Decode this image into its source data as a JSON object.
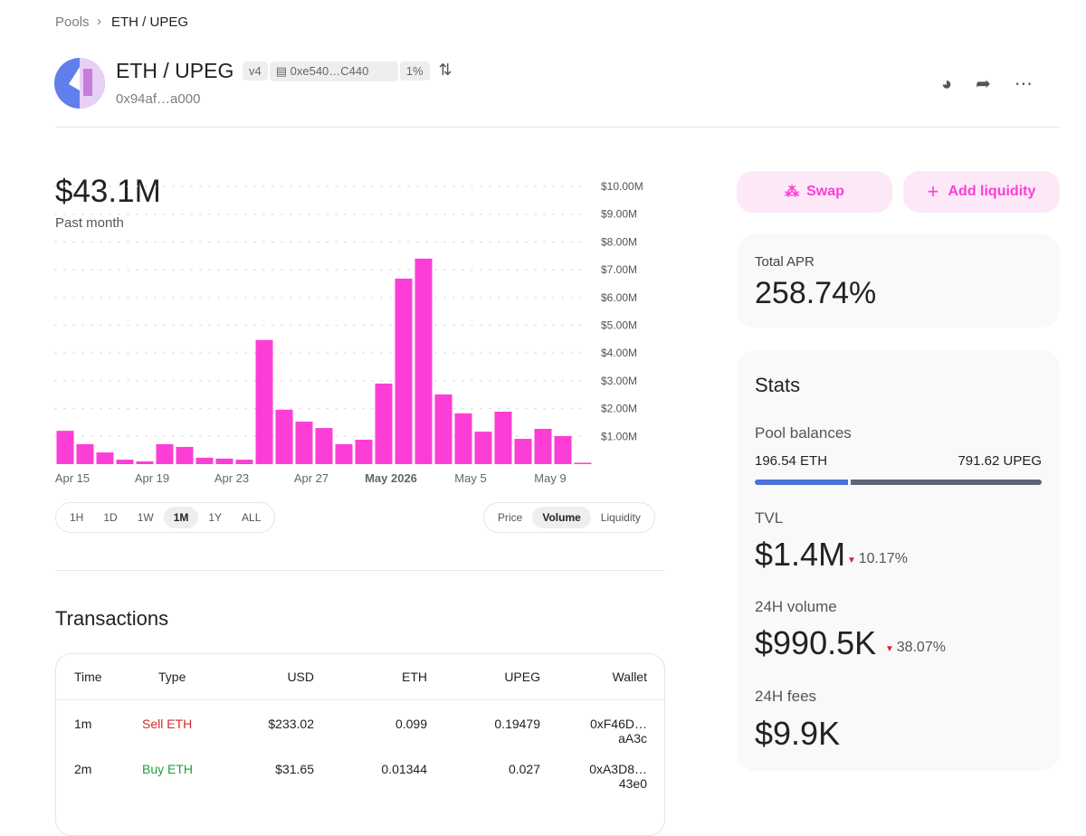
{
  "breadcrumb": {
    "root": "Pools",
    "current": "ETH / UPEG"
  },
  "header": {
    "pair": "ETH / UPEG",
    "version": "v4",
    "address": "0xe540…C440",
    "fee": "1%",
    "pool_id": "0x94af…a000"
  },
  "summary": {
    "value": "$43.1M",
    "period": "Past month"
  },
  "chart_data": {
    "type": "bar",
    "color": "#fc3ed6",
    "grid": true,
    "categories": [
      "Apr 15",
      null,
      null,
      null,
      "Apr 19",
      null,
      null,
      null,
      "Apr 23",
      null,
      null,
      null,
      "Apr 27",
      null,
      null,
      null,
      "May 2026",
      null,
      null,
      null,
      "May 5",
      null,
      null,
      null,
      "May 9",
      null,
      null
    ],
    "values": [
      1200000,
      720000,
      420000,
      160000,
      100000,
      720000,
      620000,
      230000,
      200000,
      160000,
      4470000,
      1960000,
      1530000,
      1300000,
      720000,
      880000,
      2900000,
      6680000,
      7400000,
      2510000,
      1830000,
      1170000,
      1890000,
      910000,
      1270000,
      1010000,
      50000
    ],
    "ylim": [
      0,
      10000000
    ],
    "yticks": [
      {
        "value": 1000000,
        "label": "$1.00M"
      },
      {
        "value": 2000000,
        "label": "$2.00M"
      },
      {
        "value": 3000000,
        "label": "$3.00M"
      },
      {
        "value": 4000000,
        "label": "$4.00M"
      },
      {
        "value": 5000000,
        "label": "$5.00M"
      },
      {
        "value": 6000000,
        "label": "$6.00M"
      },
      {
        "value": 7000000,
        "label": "$7.00M"
      },
      {
        "value": 8000000,
        "label": "$8.00M"
      },
      {
        "value": 9000000,
        "label": "$9.00M"
      },
      {
        "value": 10000000,
        "label": "$10.00M"
      }
    ]
  },
  "time_ranges": [
    "1H",
    "1D",
    "1W",
    "1M",
    "1Y",
    "ALL"
  ],
  "selected_range": "1M",
  "chart_modes": [
    "Price",
    "Volume",
    "Liquidity"
  ],
  "selected_mode": "Volume",
  "transactions": {
    "title": "Transactions",
    "columns": [
      "Time",
      "Type",
      "USD",
      "ETH",
      "UPEG",
      "Wallet"
    ],
    "rows": [
      [
        "1m",
        "Sell ETH",
        "$233.02",
        "0.099",
        "0.19479",
        "0xF46D…aA3c"
      ],
      [
        "2m",
        "Buy ETH",
        "$31.65",
        "0.01344",
        "0.027",
        "0xA3D8…43e0"
      ]
    ]
  },
  "actions": {
    "swap": "Swap",
    "add": "Add liquidity"
  },
  "apr": {
    "label": "Total APR",
    "value": "258.74%"
  },
  "stats": {
    "title": "Stats",
    "pool_balances": {
      "label": "Pool balances",
      "token0": "196.54 ETH",
      "token1": "791.62 UPEG"
    },
    "tvl": {
      "label": "TVL",
      "value": "$1.4M",
      "change": "10.17%"
    },
    "volume": {
      "label": "24H volume",
      "value": "$990.5K",
      "change": "38.07%"
    },
    "fees": {
      "label": "24H fees",
      "value": "$9.9K"
    }
  }
}
